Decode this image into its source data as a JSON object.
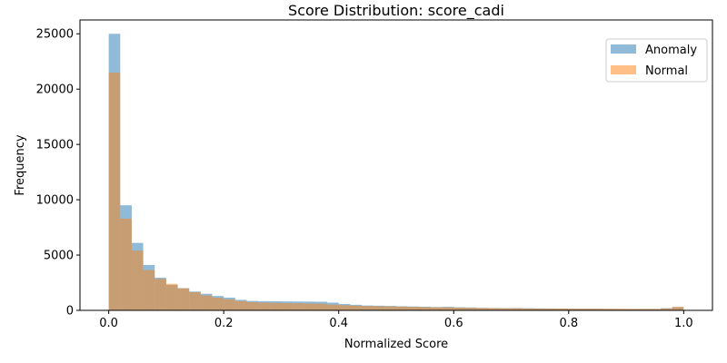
{
  "chart_data": {
    "type": "bar",
    "title": "Score Distribution: score_cadi",
    "xlabel": "Normalized Score",
    "ylabel": "Frequency",
    "xlim": [
      -0.05,
      1.05
    ],
    "ylim": [
      0,
      26250
    ],
    "xticks": [
      0.0,
      0.2,
      0.4,
      0.6,
      0.8,
      1.0
    ],
    "xtick_labels": [
      "0.0",
      "0.2",
      "0.4",
      "0.6",
      "0.8",
      "1.0"
    ],
    "yticks": [
      0,
      5000,
      10000,
      15000,
      20000,
      25000
    ],
    "ytick_labels": [
      "0",
      "5000",
      "10000",
      "15000",
      "20000",
      "25000"
    ],
    "bins": 50,
    "bin_range": [
      0,
      1
    ],
    "legend_position": "top-right",
    "series": [
      {
        "name": "Anomaly",
        "color": "#1f77b4",
        "alpha": 0.5,
        "values": [
          25000,
          9500,
          6100,
          4100,
          2950,
          2300,
          2000,
          1700,
          1500,
          1300,
          1150,
          950,
          850,
          830,
          820,
          810,
          800,
          790,
          780,
          700,
          580,
          500,
          440,
          420,
          400,
          370,
          350,
          330,
          300,
          320,
          280,
          260,
          230,
          210,
          200,
          210,
          190,
          180,
          170,
          160,
          150,
          150,
          150,
          140,
          130,
          130,
          130,
          130,
          200,
          300
        ]
      },
      {
        "name": "Normal",
        "color": "#ff7f0e",
        "alpha": 0.5,
        "values": [
          21500,
          8300,
          5400,
          3650,
          2850,
          2400,
          2000,
          1650,
          1350,
          1150,
          1000,
          850,
          750,
          700,
          680,
          660,
          640,
          620,
          600,
          520,
          470,
          430,
          400,
          380,
          360,
          340,
          320,
          300,
          280,
          270,
          250,
          230,
          210,
          200,
          190,
          190,
          180,
          170,
          160,
          160,
          150,
          150,
          150,
          140,
          140,
          130,
          130,
          130,
          180,
          320
        ]
      }
    ]
  }
}
